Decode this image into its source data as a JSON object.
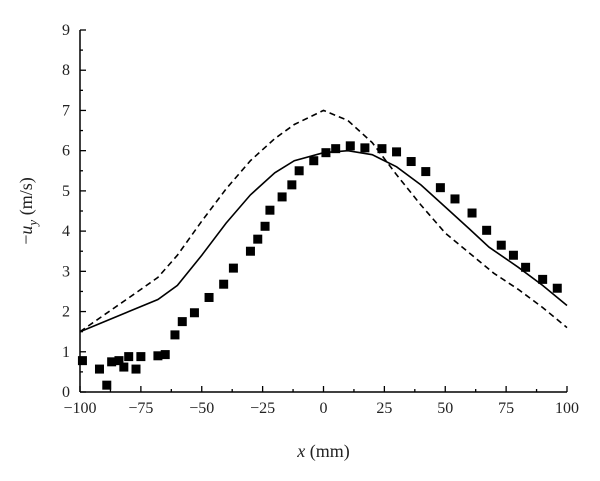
{
  "chart_data": {
    "type": "scatter",
    "title": "",
    "xlabel": {
      "italic": "x",
      "rest": " (mm)"
    },
    "ylabel": {
      "prefix": "−",
      "italic": "u",
      "sub": "y",
      "rest": " (m/s)"
    },
    "xlim": [
      -100,
      100
    ],
    "ylim": [
      0,
      9
    ],
    "xticks": [
      -100,
      -75,
      -50,
      -25,
      0,
      25,
      50,
      75,
      100
    ],
    "xtick_labels": [
      "−100",
      "−75",
      "−50",
      "−25",
      "0",
      "25",
      "50",
      "75",
      "100"
    ],
    "yticks": [
      0,
      1,
      2,
      3,
      4,
      5,
      6,
      7,
      8,
      9
    ],
    "ytick_labels": [
      "0",
      "1",
      "2",
      "3",
      "4",
      "5",
      "6",
      "7",
      "8",
      "9"
    ],
    "grid": false,
    "colors": {
      "series": "#000000",
      "axes": "#000000"
    },
    "series": [
      {
        "style": "dashed-line",
        "x": [
          -100,
          -75,
          -68,
          -60,
          -50,
          -40,
          -30,
          -20,
          -12,
          0,
          10,
          20,
          30,
          40,
          50,
          60,
          70,
          80,
          90,
          100
        ],
        "y": [
          1.5,
          2.55,
          2.85,
          3.4,
          4.25,
          5.05,
          5.75,
          6.3,
          6.65,
          7.0,
          6.75,
          6.2,
          5.4,
          4.65,
          3.95,
          3.45,
          2.95,
          2.55,
          2.1,
          1.6
        ]
      },
      {
        "style": "solid-line",
        "x": [
          -100,
          -68,
          -60,
          -50,
          -40,
          -30,
          -20,
          -12,
          0,
          10,
          20,
          30,
          40,
          50,
          60,
          68,
          80,
          90,
          100
        ],
        "y": [
          1.5,
          2.3,
          2.65,
          3.4,
          4.2,
          4.9,
          5.45,
          5.75,
          5.95,
          6.0,
          5.9,
          5.6,
          5.15,
          4.6,
          4.05,
          3.6,
          3.1,
          2.65,
          2.15
        ]
      },
      {
        "style": "square-markers",
        "x": [
          -99,
          -92,
          -89,
          -87,
          -84,
          -82,
          -80,
          -77,
          -75,
          -68,
          -65,
          -61,
          -58,
          -53,
          -47,
          -41,
          -37,
          -30,
          -27,
          -24,
          -22,
          -17,
          -13,
          -10,
          -4,
          1,
          5,
          11,
          17,
          24,
          30,
          36,
          42,
          48,
          54,
          61,
          67,
          73,
          78,
          83,
          90,
          96
        ],
        "y": [
          0.78,
          0.57,
          0.17,
          0.75,
          0.78,
          0.62,
          0.88,
          0.57,
          0.88,
          0.9,
          0.93,
          1.42,
          1.75,
          1.97,
          2.35,
          2.68,
          3.08,
          3.5,
          3.8,
          4.12,
          4.52,
          4.85,
          5.15,
          5.5,
          5.75,
          5.95,
          6.05,
          6.12,
          6.07,
          6.05,
          5.97,
          5.73,
          5.48,
          5.08,
          4.8,
          4.45,
          4.02,
          3.65,
          3.4,
          3.1,
          2.8,
          2.58
        ]
      }
    ]
  }
}
